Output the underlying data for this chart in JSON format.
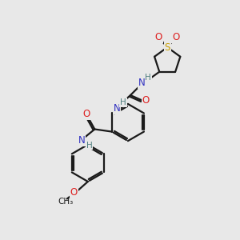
{
  "background_color": "#e8e8e8",
  "bond_color": "#1a1a1a",
  "atom_colors": {
    "N": "#3030c0",
    "O": "#dd2020",
    "S": "#c8a000",
    "H": "#508080",
    "C": "#1a1a1a"
  }
}
